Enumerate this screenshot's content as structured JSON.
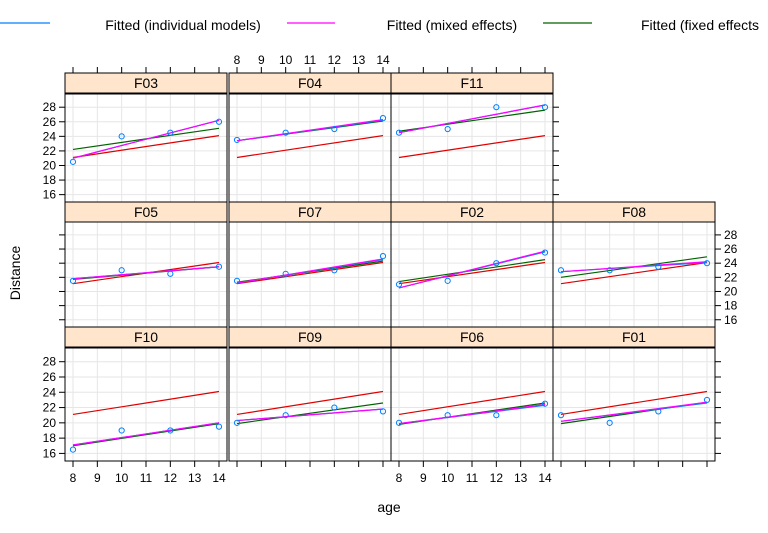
{
  "chart_data": {
    "type": "scatter",
    "layout": "lattice-trellis",
    "xlabel": "age",
    "ylabel": "Distance",
    "xlim": [
      8,
      14
    ],
    "ylim": [
      15.4,
      29.4
    ],
    "x_ticks": [
      8,
      9,
      10,
      11,
      12,
      13,
      14
    ],
    "y_ticks": [
      16,
      18,
      20,
      22,
      24,
      26,
      28
    ],
    "grid": true,
    "legend": {
      "position": "top",
      "entries": [
        {
          "label": "Fitted (individual models)",
          "color": "#0080ff"
        },
        {
          "label": "Fitted (mixed effects)",
          "color": "#ff00ff"
        },
        {
          "label": "Fitted (fixed effects",
          "color": "#006400"
        }
      ]
    },
    "colors": {
      "points": "#0080ff",
      "individual": "#0080ff",
      "mixed": "#ff00ff",
      "fixed": "#006400",
      "population": "#e00000",
      "strip_bg": "#ffe5cc",
      "grid": "#e6e6e6"
    },
    "x": [
      8,
      10,
      12,
      14
    ],
    "panels": [
      {
        "label": "F03",
        "y": [
          20.5,
          24.0,
          24.5,
          26.0
        ],
        "individual": [
          21.0,
          26.2
        ],
        "mixed": [
          21.0,
          26.2
        ],
        "fixed": [
          22.2,
          25.1
        ],
        "population": [
          21.1,
          24.1
        ]
      },
      {
        "label": "F04",
        "y": [
          23.5,
          24.5,
          25.0,
          26.5
        ],
        "individual": [
          23.4,
          26.2
        ],
        "mixed": [
          23.4,
          26.3
        ],
        "fixed": [
          23.4,
          26.1
        ],
        "population": [
          21.1,
          24.1
        ]
      },
      {
        "label": "F11",
        "y": [
          24.5,
          25.0,
          28.0,
          28.0
        ],
        "individual": [
          24.5,
          28.3
        ],
        "mixed": [
          24.5,
          28.3
        ],
        "fixed": [
          24.7,
          27.6
        ],
        "population": [
          21.1,
          24.1
        ]
      },
      {
        "label": "F05",
        "y": [
          21.5,
          23.0,
          22.5,
          23.5
        ],
        "individual": [
          21.8,
          23.5
        ],
        "mixed": [
          21.8,
          23.5
        ],
        "fixed": [
          21.7,
          23.5
        ],
        "population": [
          21.1,
          24.1
        ]
      },
      {
        "label": "F07",
        "y": [
          21.5,
          22.5,
          23.0,
          25.0
        ],
        "individual": [
          21.2,
          24.5
        ],
        "mixed": [
          21.2,
          24.6
        ],
        "fixed": [
          21.3,
          24.3
        ],
        "population": [
          21.1,
          24.1
        ]
      },
      {
        "label": "F02",
        "y": [
          21.0,
          21.5,
          24.0,
          25.5
        ],
        "individual": [
          20.5,
          25.6
        ],
        "mixed": [
          20.5,
          25.7
        ],
        "fixed": [
          21.4,
          24.5
        ],
        "population": [
          21.1,
          24.1
        ]
      },
      {
        "label": "F08",
        "y": [
          23.0,
          23.0,
          23.5,
          24.0
        ],
        "individual": [
          22.8,
          24.1
        ],
        "mixed": [
          22.8,
          24.2
        ],
        "fixed": [
          22.0,
          24.9
        ],
        "population": [
          21.1,
          24.1
        ]
      },
      {
        "label": "F10",
        "y": [
          16.5,
          19.0,
          19.0,
          19.5
        ],
        "individual": [
          17.1,
          20.0
        ],
        "mixed": [
          17.1,
          20.0
        ],
        "fixed": [
          17.0,
          19.9
        ],
        "population": [
          21.1,
          24.1
        ]
      },
      {
        "label": "F09",
        "y": [
          20.0,
          21.0,
          22.0,
          21.5
        ],
        "individual": [
          20.3,
          21.8
        ],
        "mixed": [
          20.3,
          21.8
        ],
        "fixed": [
          19.9,
          22.6
        ],
        "population": [
          21.1,
          24.1
        ]
      },
      {
        "label": "F06",
        "y": [
          20.0,
          21.0,
          21.0,
          22.5
        ],
        "individual": [
          19.9,
          22.3
        ],
        "mixed": [
          19.9,
          22.4
        ],
        "fixed": [
          19.8,
          22.6
        ],
        "population": [
          21.1,
          24.1
        ]
      },
      {
        "label": "F01",
        "y": [
          21.0,
          20.0,
          21.5,
          23.0
        ],
        "individual": [
          20.2,
          22.6
        ],
        "mixed": [
          20.2,
          22.7
        ],
        "fixed": [
          19.9,
          22.7
        ],
        "population": [
          21.1,
          24.1
        ]
      }
    ]
  }
}
